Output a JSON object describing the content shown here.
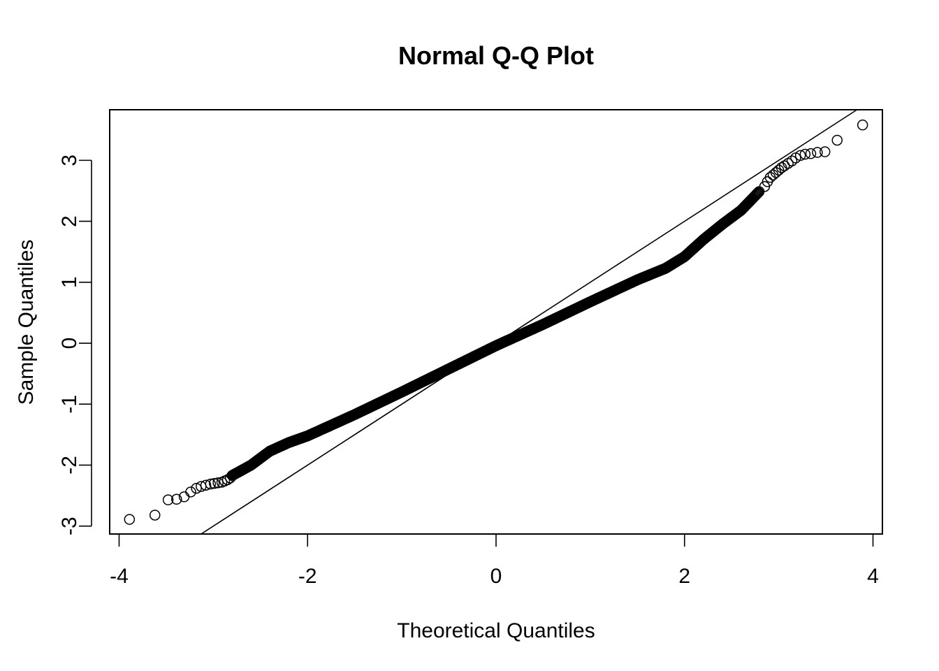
{
  "chart_data": {
    "type": "scatter",
    "title": "Normal Q-Q Plot",
    "xlabel": "Theoretical Quantiles",
    "ylabel": "Sample Quantiles",
    "xlim": [
      -4.1,
      4.1
    ],
    "ylim": [
      -3.13,
      3.83
    ],
    "x_ticks": [
      "-4",
      "-2",
      "0",
      "2",
      "4"
    ],
    "y_ticks": [
      "-3",
      "-2",
      "-1",
      "0",
      "1",
      "2",
      "3"
    ],
    "grid": false,
    "legend": "none",
    "reference_line": {
      "intercept": 0.0,
      "slope": 1.0
    },
    "outlier_points": {
      "x": [
        -3.89,
        -3.62,
        -3.48,
        -3.39,
        -3.31,
        -3.24,
        -3.18,
        -3.13,
        -3.08,
        -3.03,
        -2.99,
        -2.95,
        -2.91,
        -2.88,
        -2.85,
        -2.82,
        2.85,
        2.88,
        2.91,
        2.94,
        2.97,
        3.0,
        3.03,
        3.06,
        3.1,
        3.14,
        3.18,
        3.23,
        3.28,
        3.34,
        3.41,
        3.49,
        3.62,
        3.89
      ],
      "y": [
        -2.89,
        -2.82,
        -2.57,
        -2.56,
        -2.52,
        -2.44,
        -2.38,
        -2.35,
        -2.33,
        -2.31,
        -2.3,
        -2.29,
        -2.28,
        -2.26,
        -2.24,
        -2.21,
        2.57,
        2.65,
        2.72,
        2.76,
        2.8,
        2.84,
        2.88,
        2.91,
        2.95,
        2.99,
        3.04,
        3.08,
        3.1,
        3.11,
        3.13,
        3.14,
        3.33,
        3.58
      ]
    },
    "trend_curve": {
      "x": [
        -2.8,
        -2.6,
        -2.4,
        -2.2,
        -2.0,
        -1.5,
        -1.0,
        -0.5,
        0.0,
        0.5,
        1.0,
        1.5,
        1.8,
        2.0,
        2.2,
        2.4,
        2.6,
        2.8
      ],
      "y": [
        -2.17,
        -2.0,
        -1.77,
        -1.63,
        -1.52,
        -1.17,
        -0.8,
        -0.42,
        -0.04,
        0.31,
        0.68,
        1.04,
        1.23,
        1.42,
        1.7,
        1.95,
        2.18,
        2.5
      ]
    }
  }
}
